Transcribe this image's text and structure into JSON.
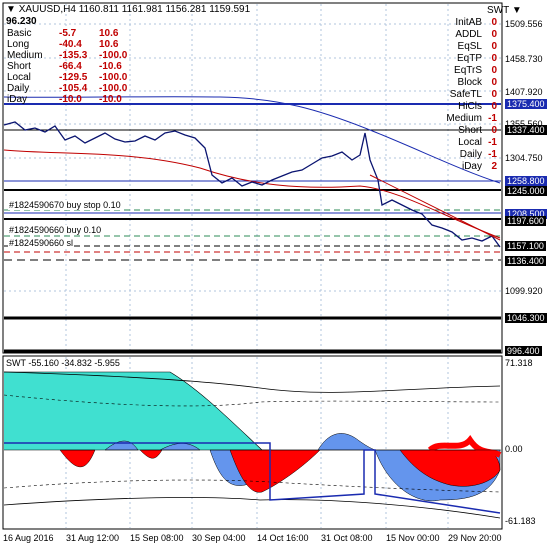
{
  "header": {
    "symbol": "XAUUSD,H4",
    "ohlc": "1160.811 1161.981 1156.281 1159.591",
    "price": "96.230",
    "indicator_tag": "SWT"
  },
  "panel_left": [
    {
      "name": "Basic",
      "v1": "-5.7",
      "v2": "10.6"
    },
    {
      "name": "Long",
      "v1": "-40.4",
      "v2": "10.6"
    },
    {
      "name": "Medium",
      "v1": "-135.3",
      "v2": "-100.0"
    },
    {
      "name": "Short",
      "v1": "-66.4",
      "v2": "-10.6"
    },
    {
      "name": "Local",
      "v1": "-129.5",
      "v2": "-100.0"
    },
    {
      "name": "Daily",
      "v1": "-105.4",
      "v2": "-100.0"
    },
    {
      "name": "iDay",
      "v1": "-10.0",
      "v2": "-10.0"
    }
  ],
  "panel_right": [
    {
      "k": "InitAB",
      "v": "0",
      "c": "#c00000"
    },
    {
      "k": "ADDL",
      "v": "0",
      "c": "#c00000"
    },
    {
      "k": "EqSL",
      "v": "0",
      "c": "#c00000"
    },
    {
      "k": "EqTP",
      "v": "0",
      "c": "#c00000"
    },
    {
      "k": "EqTrS",
      "v": "0",
      "c": "#c00000"
    },
    {
      "k": "Block",
      "v": "0",
      "c": "#c00000"
    },
    {
      "k": "SafeTL",
      "v": "0",
      "c": "#c00000"
    },
    {
      "k": "HiCls",
      "v": "0",
      "c": "#c00000"
    },
    {
      "k": "Medium",
      "v": "-1",
      "c": "#c00000"
    },
    {
      "k": "Short",
      "v": "0",
      "c": "#c00000"
    },
    {
      "k": "Local",
      "v": "-1",
      "c": "#c00000"
    },
    {
      "k": "Daily",
      "v": "-1",
      "c": "#c00000"
    },
    {
      "k": "iDay",
      "v": "2",
      "c": "#c00000"
    }
  ],
  "orders": [
    {
      "label": "#1824590670 buy stop 0.10"
    },
    {
      "label": "#1824590660 buy 0.10"
    },
    {
      "label": "#1824590660 sl"
    }
  ],
  "price_axis": {
    "ticks": [
      "1509.556",
      "1458.730",
      "1407.920",
      "1355.560",
      "1304.750",
      "1099.920"
    ],
    "boxed": [
      {
        "label": "1375.400",
        "style": "blue"
      },
      {
        "label": "1337.400",
        "style": "black"
      },
      {
        "label": "1258.800",
        "style": "blue"
      },
      {
        "label": "1245.000",
        "style": "black"
      },
      {
        "label": "1208.500",
        "style": "blue"
      },
      {
        "label": "1197.600",
        "style": "black"
      },
      {
        "label": "1157.100",
        "style": "black"
      },
      {
        "label": "1136.400",
        "style": "black"
      },
      {
        "label": "1046.300",
        "style": "black"
      },
      {
        "label": "996.400",
        "style": "black"
      }
    ]
  },
  "sub_window": {
    "title": "SWT -55.160 -34.832 -5.955",
    "ticks": [
      "71.318",
      "0.00",
      "-61.183"
    ]
  },
  "time_axis": [
    "16 Aug 2016",
    "31 Aug 12:00",
    "15 Sep 08:00",
    "30 Sep 04:00",
    "14 Oct 16:00",
    "31 Oct 08:00",
    "15 Nov 00:00",
    "29 Nov 20:00"
  ],
  "colors": {
    "price_line": "#0a1470",
    "ma_red": "#c00000",
    "cyan_fill": "#40e0d0",
    "red_fill": "#ff0000",
    "blue_fill": "#6495ed",
    "grid": "#b0c4de"
  }
}
